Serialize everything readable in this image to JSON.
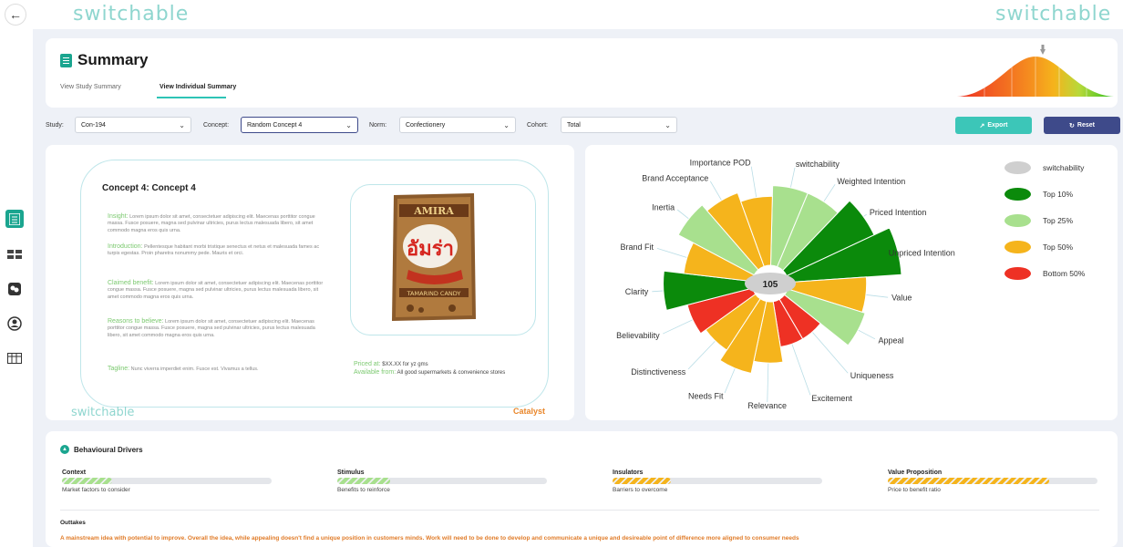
{
  "app": {
    "logo_left": "switchable",
    "logo_right": "switchable"
  },
  "header": {
    "title": "Summary",
    "tabs": [
      "View Study Summary",
      "View Individual Summary"
    ],
    "active_tab": 1
  },
  "filters": {
    "study_label": "Study:",
    "study_value": "Con-194",
    "concept_label": "Concept:",
    "concept_value": "Random Concept 4",
    "norm_label": "Norm:",
    "norm_value": "Confectionery",
    "cohort_label": "Cohort:",
    "cohort_value": "Total",
    "export_label": "Export",
    "reset_label": "Reset"
  },
  "concept": {
    "title": "Concept 4: Concept 4",
    "sections": [
      {
        "label": "Insight:",
        "text": "Lorem ipsum dolor sit amet, consectetuer adipiscing elit. Maecenas porttitor congue massa. Fusce posuere, magna sed pulvinar ultricies, purus lectus malesuada libero, sit amet commodo magna eros quis urna."
      },
      {
        "label": "Introduction:",
        "text": "Pellentesque habitant morbi tristique senectus et netus et malesuada fames ac turpis egestas. Proin pharetra nonummy pede. Mauris et orci."
      },
      {
        "label": "Claimed benefit:",
        "text": "Lorem ipsum dolor sit amet, consectetuer adipiscing elit. Maecenas porttitor congue massa. Fusce posuere, magna sed pulvinar ultricies, purus lectus malesuada libero, sit amet commodo magna eros quis urna."
      },
      {
        "label": "Reasons to believe:",
        "text": "Lorem ipsum dolor sit amet, consectetuer adipiscing elit. Maecenas porttitor congue massa. Fusce posuere, magna sed pulvinar ultricies, purus lectus malesuada libero, sit amet commodo magna eros quis urna."
      },
      {
        "label": "Tagline:",
        "text": "Nunc viverra imperdiet enim. Fusce est. Vivamus a tellus."
      }
    ],
    "priced_label": "Priced at:",
    "priced_value": "$XX.XX for yz gms",
    "available_label": "Available from:",
    "available_value": "All good supermarkets & convenience stores",
    "package_text_top": "AMIRA",
    "package_text_mid": "อัมร่า",
    "package_text_bottom": "TAMARIND CANDY",
    "footer_logo": "switchable",
    "catalyst": "Catalyst"
  },
  "colors": {
    "top10": "#0b8a0b",
    "top25": "#a8e08e",
    "top50": "#f5b41c",
    "bottom50": "#ee3124",
    "switchability": "#cfcfcf",
    "teal": "#3cc6b8",
    "navy": "#3e4a8a"
  },
  "chart_data": {
    "type": "polar-bar",
    "center_value": "105",
    "categories": [
      "switchability",
      "Weighted Intention",
      "Priced Intention",
      "Unpriced Intention",
      "Value",
      "Appeal",
      "Uniqueness",
      "Excitement",
      "Relevance",
      "Needs Fit",
      "Distinctiveness",
      "Believability",
      "Clarity",
      "Brand Fit",
      "Inertia",
      "Brand Acceptance",
      "Importance POD"
    ],
    "values": [
      0.52,
      0.52,
      0.63,
      0.74,
      0.51,
      0.53,
      0.3,
      0.3,
      0.4,
      0.48,
      0.4,
      0.44,
      0.58,
      0.45,
      0.56,
      0.51,
      0.45
    ],
    "tiers": [
      "Top 25%",
      "Top 25%",
      "Top 10%",
      "Top 10%",
      "Top 50%",
      "Top 25%",
      "Bottom 50%",
      "Bottom 50%",
      "Top 50%",
      "Top 50%",
      "Top 50%",
      "Bottom 50%",
      "Top 10%",
      "Top 50%",
      "Top 25%",
      "Top 50%",
      "Top 50%"
    ],
    "legend": [
      "switchability",
      "Top 10%",
      "Top 25%",
      "Top 50%",
      "Bottom 50%"
    ]
  },
  "drivers": {
    "title": "Behavioural Drivers",
    "metrics": [
      {
        "name": "Context",
        "sub": "Market factors to consider",
        "value": 0.24,
        "color": "#a8e08e"
      },
      {
        "name": "Stimulus",
        "sub": "Benefits to reinforce",
        "value": 0.25,
        "color": "#a8e08e"
      },
      {
        "name": "Insulators",
        "sub": "Barriers to overcome",
        "value": 0.28,
        "color": "#f5b41c"
      },
      {
        "name": "Value Proposition",
        "sub": "Price to benefit ratio",
        "value": 0.77,
        "color": "#f5b41c"
      }
    ],
    "outtakes_title": "Outtakes",
    "outtakes_text": "A mainstream idea with potential to improve. Overall the idea, while appealing doesn't find a unique position in customers minds. Work will need to be done to develop and communicate a unique and desireable point of difference more aligned to consumer needs"
  }
}
